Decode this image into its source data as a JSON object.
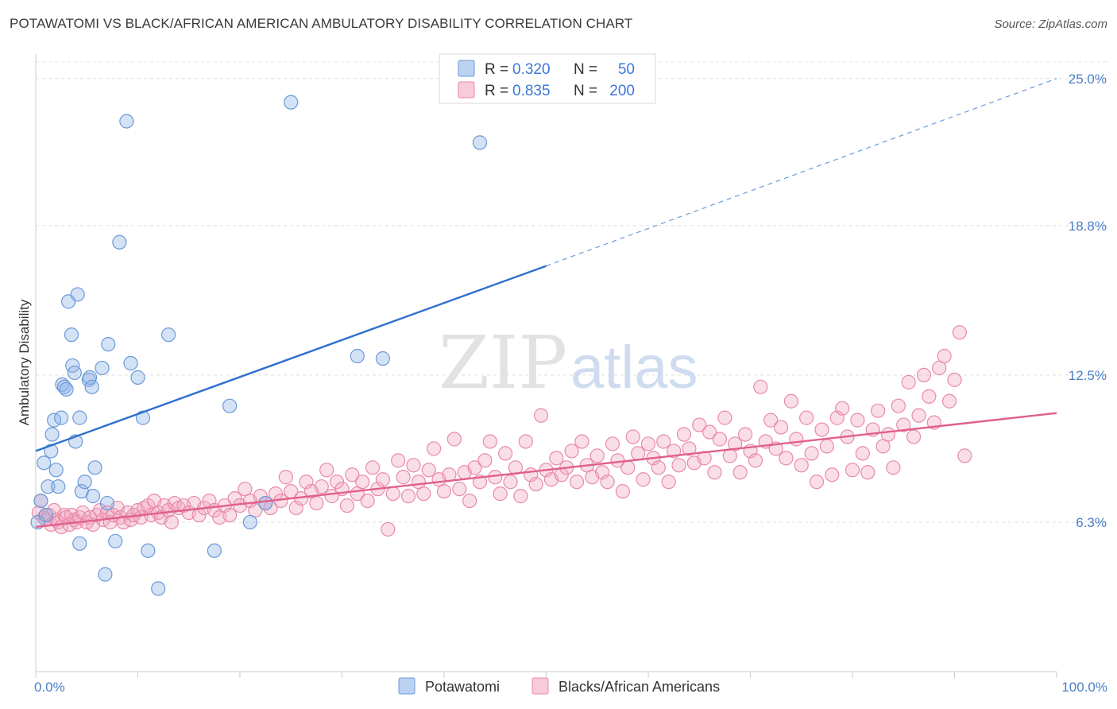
{
  "title": "POTAWATOMI VS BLACK/AFRICAN AMERICAN AMBULATORY DISABILITY CORRELATION CHART",
  "source": "Source: ZipAtlas.com",
  "watermark": {
    "zip": "ZIP",
    "atlas": "atlas"
  },
  "chart_data": {
    "type": "scatter",
    "xlabel": "",
    "ylabel": "Ambulatory Disability",
    "xlim": [
      0,
      100
    ],
    "ylim": [
      0,
      26.3
    ],
    "x_tick_labels": [
      {
        "value": 0,
        "label": "0.0%"
      },
      {
        "value": 100,
        "label": "100.0%"
      }
    ],
    "y_tick_labels": [
      {
        "value": 6.3,
        "label": "6.3%"
      },
      {
        "value": 12.5,
        "label": "12.5%"
      },
      {
        "value": 18.8,
        "label": "18.8%"
      },
      {
        "value": 25.0,
        "label": "25.0%"
      }
    ],
    "grid": true,
    "legend": {
      "placement": "top-center",
      "r_label": "R =",
      "n_label": "N =",
      "entries": [
        {
          "r": "0.320",
          "n": "50",
          "color": "#8fb4e8"
        },
        {
          "r": "0.835",
          "n": "200",
          "color": "#f2a8c0"
        }
      ]
    },
    "series": [
      {
        "name": "Potawatomi",
        "color": "#8fb4e8",
        "stroke": "#6a9ad8",
        "trend": {
          "color": "#2f6fcf",
          "x0": 0,
          "y0": 9.3,
          "x1": 50,
          "y1": 17.1,
          "dashed_to_x": 100,
          "dashed_to_y": 25.0
        },
        "points": [
          [
            0.2,
            6.3
          ],
          [
            0.5,
            7.2
          ],
          [
            0.8,
            8.8
          ],
          [
            1.2,
            7.8
          ],
          [
            1.5,
            9.3
          ],
          [
            1.6,
            10.0
          ],
          [
            1.8,
            10.6
          ],
          [
            2.0,
            8.5
          ],
          [
            2.2,
            7.8
          ],
          [
            2.5,
            10.7
          ],
          [
            2.6,
            12.1
          ],
          [
            2.8,
            12.0
          ],
          [
            3.0,
            11.9
          ],
          [
            3.2,
            15.6
          ],
          [
            3.5,
            14.2
          ],
          [
            3.6,
            12.9
          ],
          [
            3.8,
            12.6
          ],
          [
            3.9,
            9.7
          ],
          [
            4.1,
            15.9
          ],
          [
            4.3,
            10.7
          ],
          [
            4.5,
            7.6
          ],
          [
            4.8,
            8.0
          ],
          [
            5.2,
            12.3
          ],
          [
            5.3,
            12.4
          ],
          [
            5.5,
            12.0
          ],
          [
            5.6,
            7.4
          ],
          [
            5.8,
            8.6
          ],
          [
            6.5,
            12.8
          ],
          [
            7.1,
            13.8
          ],
          [
            7.8,
            5.5
          ],
          [
            8.2,
            18.1
          ],
          [
            8.9,
            23.2
          ],
          [
            9.3,
            13.0
          ],
          [
            10.0,
            12.4
          ],
          [
            10.5,
            10.7
          ],
          [
            11.0,
            5.1
          ],
          [
            12.0,
            3.5
          ],
          [
            13.0,
            14.2
          ],
          [
            7.0,
            7.1
          ],
          [
            6.8,
            4.1
          ],
          [
            4.3,
            5.4
          ],
          [
            17.5,
            5.1
          ],
          [
            19.0,
            11.2
          ],
          [
            21.0,
            6.3
          ],
          [
            22.5,
            7.1
          ],
          [
            25.0,
            24.0
          ],
          [
            31.5,
            13.3
          ],
          [
            34.0,
            13.2
          ],
          [
            43.5,
            22.3
          ],
          [
            1.0,
            6.6
          ]
        ]
      },
      {
        "name": "Blacks/African Americans",
        "color": "#f2a8c0",
        "stroke": "#e88aaa",
        "trend": {
          "color": "#e0608a",
          "x0": 0,
          "y0": 6.1,
          "x1": 100,
          "y1": 10.9
        },
        "points": [
          [
            0.3,
            6.7
          ],
          [
            0.5,
            7.2
          ],
          [
            0.8,
            6.5
          ],
          [
            1.0,
            6.4
          ],
          [
            1.3,
            6.6
          ],
          [
            1.5,
            6.2
          ],
          [
            1.8,
            6.8
          ],
          [
            2.0,
            6.4
          ],
          [
            2.2,
            6.3
          ],
          [
            2.5,
            6.1
          ],
          [
            2.8,
            6.6
          ],
          [
            3.0,
            6.5
          ],
          [
            3.3,
            6.2
          ],
          [
            3.5,
            6.6
          ],
          [
            3.8,
            6.4
          ],
          [
            4.0,
            6.3
          ],
          [
            4.3,
            6.5
          ],
          [
            4.6,
            6.7
          ],
          [
            5.0,
            6.3
          ],
          [
            5.3,
            6.5
          ],
          [
            5.6,
            6.2
          ],
          [
            6.0,
            6.6
          ],
          [
            6.3,
            6.8
          ],
          [
            6.6,
            6.4
          ],
          [
            7.0,
            6.7
          ],
          [
            7.3,
            6.3
          ],
          [
            7.6,
            6.6
          ],
          [
            8.0,
            6.9
          ],
          [
            8.3,
            6.5
          ],
          [
            8.6,
            6.3
          ],
          [
            9.0,
            6.7
          ],
          [
            9.3,
            6.4
          ],
          [
            9.6,
            6.6
          ],
          [
            10.0,
            6.8
          ],
          [
            10.3,
            6.5
          ],
          [
            10.6,
            6.9
          ],
          [
            11.0,
            7.0
          ],
          [
            11.3,
            6.6
          ],
          [
            11.6,
            7.2
          ],
          [
            12.0,
            6.7
          ],
          [
            12.3,
            6.5
          ],
          [
            12.6,
            7.0
          ],
          [
            13.0,
            6.8
          ],
          [
            13.3,
            6.3
          ],
          [
            13.6,
            7.1
          ],
          [
            14.0,
            6.9
          ],
          [
            14.5,
            7.0
          ],
          [
            15.0,
            6.7
          ],
          [
            15.5,
            7.1
          ],
          [
            16.0,
            6.6
          ],
          [
            16.5,
            6.9
          ],
          [
            17.0,
            7.2
          ],
          [
            17.5,
            6.8
          ],
          [
            18.0,
            6.5
          ],
          [
            18.5,
            7.0
          ],
          [
            19.0,
            6.6
          ],
          [
            19.5,
            7.3
          ],
          [
            20.0,
            7.0
          ],
          [
            20.5,
            7.7
          ],
          [
            21.0,
            7.2
          ],
          [
            21.5,
            6.8
          ],
          [
            22.0,
            7.4
          ],
          [
            22.5,
            7.1
          ],
          [
            23.0,
            6.9
          ],
          [
            23.5,
            7.5
          ],
          [
            24.0,
            7.2
          ],
          [
            24.5,
            8.2
          ],
          [
            25.0,
            7.6
          ],
          [
            25.5,
            6.9
          ],
          [
            26.0,
            7.3
          ],
          [
            26.5,
            8.0
          ],
          [
            27.0,
            7.6
          ],
          [
            27.5,
            7.1
          ],
          [
            28.0,
            7.8
          ],
          [
            28.5,
            8.5
          ],
          [
            29.0,
            7.4
          ],
          [
            29.5,
            8.0
          ],
          [
            30.0,
            7.7
          ],
          [
            30.5,
            7.0
          ],
          [
            31.0,
            8.3
          ],
          [
            31.5,
            7.5
          ],
          [
            32.0,
            8.0
          ],
          [
            32.5,
            7.2
          ],
          [
            33.0,
            8.6
          ],
          [
            33.5,
            7.7
          ],
          [
            34.0,
            8.1
          ],
          [
            34.5,
            6.0
          ],
          [
            35.0,
            7.5
          ],
          [
            35.5,
            8.9
          ],
          [
            36.0,
            8.2
          ],
          [
            36.5,
            7.4
          ],
          [
            37.0,
            8.7
          ],
          [
            37.5,
            8.0
          ],
          [
            38.0,
            7.5
          ],
          [
            38.5,
            8.5
          ],
          [
            39.0,
            9.4
          ],
          [
            39.5,
            8.1
          ],
          [
            40.0,
            7.6
          ],
          [
            40.5,
            8.3
          ],
          [
            41.0,
            9.8
          ],
          [
            41.5,
            7.7
          ],
          [
            42.0,
            8.4
          ],
          [
            42.5,
            7.2
          ],
          [
            43.0,
            8.6
          ],
          [
            43.5,
            8.0
          ],
          [
            44.0,
            8.9
          ],
          [
            44.5,
            9.7
          ],
          [
            45.0,
            8.2
          ],
          [
            45.5,
            7.5
          ],
          [
            46.0,
            9.2
          ],
          [
            46.5,
            8.0
          ],
          [
            47.0,
            8.6
          ],
          [
            47.5,
            7.4
          ],
          [
            48.0,
            9.7
          ],
          [
            48.5,
            8.3
          ],
          [
            49.0,
            7.9
          ],
          [
            49.5,
            10.8
          ],
          [
            50.0,
            8.5
          ],
          [
            50.5,
            8.1
          ],
          [
            51.0,
            9.0
          ],
          [
            51.5,
            8.3
          ],
          [
            52.0,
            8.6
          ],
          [
            52.5,
            9.3
          ],
          [
            53.0,
            8.0
          ],
          [
            53.5,
            9.7
          ],
          [
            54.0,
            8.7
          ],
          [
            54.5,
            8.2
          ],
          [
            55.0,
            9.1
          ],
          [
            55.5,
            8.4
          ],
          [
            56.0,
            8.0
          ],
          [
            56.5,
            9.6
          ],
          [
            57.0,
            8.9
          ],
          [
            57.5,
            7.6
          ],
          [
            58.0,
            8.6
          ],
          [
            58.5,
            9.9
          ],
          [
            59.0,
            9.2
          ],
          [
            59.5,
            8.1
          ],
          [
            60.0,
            9.6
          ],
          [
            60.5,
            9.0
          ],
          [
            61.0,
            8.6
          ],
          [
            61.5,
            9.7
          ],
          [
            62.0,
            8.0
          ],
          [
            62.5,
            9.3
          ],
          [
            63.0,
            8.7
          ],
          [
            63.5,
            10.0
          ],
          [
            64.0,
            9.4
          ],
          [
            64.5,
            8.8
          ],
          [
            65.0,
            10.4
          ],
          [
            65.5,
            9.0
          ],
          [
            66.0,
            10.1
          ],
          [
            66.5,
            8.4
          ],
          [
            67.0,
            9.8
          ],
          [
            67.5,
            10.7
          ],
          [
            68.0,
            9.1
          ],
          [
            68.5,
            9.6
          ],
          [
            69.0,
            8.4
          ],
          [
            69.5,
            10.0
          ],
          [
            70.0,
            9.3
          ],
          [
            70.5,
            8.9
          ],
          [
            71.0,
            12.0
          ],
          [
            71.5,
            9.7
          ],
          [
            72.0,
            10.6
          ],
          [
            72.5,
            9.4
          ],
          [
            73.0,
            10.3
          ],
          [
            73.5,
            9.0
          ],
          [
            74.0,
            11.4
          ],
          [
            74.5,
            9.8
          ],
          [
            75.0,
            8.7
          ],
          [
            75.5,
            10.7
          ],
          [
            76.0,
            9.2
          ],
          [
            76.5,
            8.0
          ],
          [
            77.0,
            10.2
          ],
          [
            77.5,
            9.5
          ],
          [
            78.0,
            8.3
          ],
          [
            78.5,
            10.7
          ],
          [
            79.0,
            11.1
          ],
          [
            79.5,
            9.9
          ],
          [
            80.0,
            8.5
          ],
          [
            80.5,
            10.6
          ],
          [
            81.0,
            9.2
          ],
          [
            81.5,
            8.4
          ],
          [
            82.0,
            10.2
          ],
          [
            82.5,
            11.0
          ],
          [
            83.0,
            9.5
          ],
          [
            83.5,
            10.0
          ],
          [
            84.0,
            8.6
          ],
          [
            84.5,
            11.2
          ],
          [
            85.0,
            10.4
          ],
          [
            85.5,
            12.2
          ],
          [
            86.0,
            9.9
          ],
          [
            86.5,
            10.8
          ],
          [
            87.0,
            12.5
          ],
          [
            87.5,
            11.6
          ],
          [
            88.0,
            10.5
          ],
          [
            88.5,
            12.8
          ],
          [
            89.0,
            13.3
          ],
          [
            89.5,
            11.4
          ],
          [
            90.0,
            12.3
          ],
          [
            90.5,
            14.3
          ],
          [
            91.0,
            9.1
          ]
        ]
      }
    ],
    "bottom_legend": [
      "Potawatomi",
      "Blacks/African Americans"
    ]
  }
}
